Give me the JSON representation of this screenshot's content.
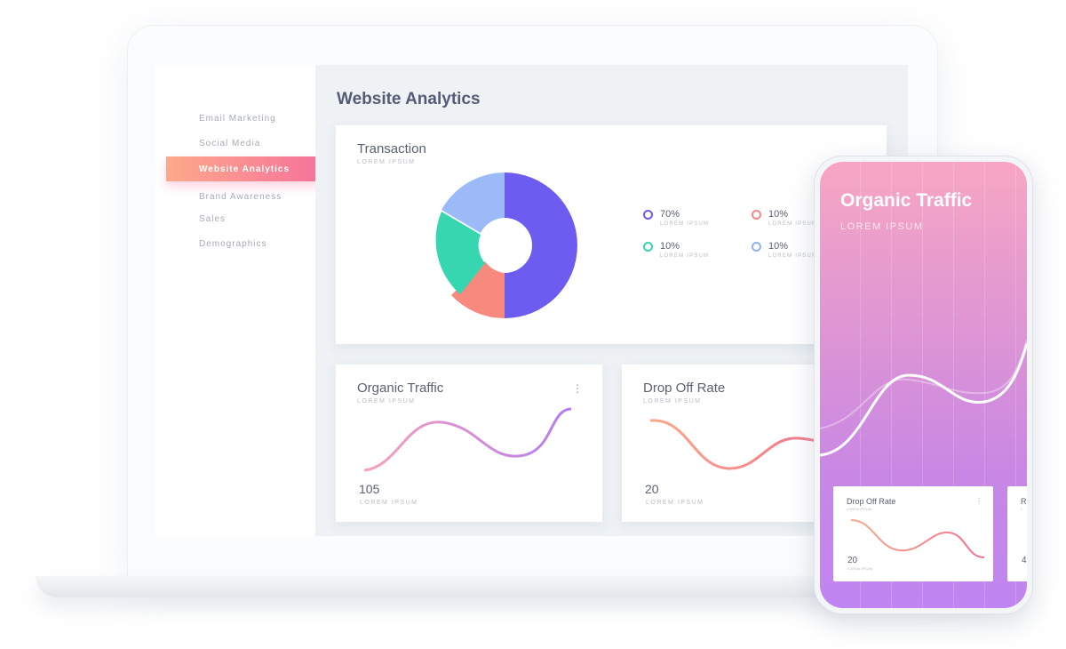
{
  "sidebar": {
    "items": [
      {
        "label": "Email Marketing"
      },
      {
        "label": "Social Media"
      },
      {
        "label": "Website Analytics",
        "active": true
      },
      {
        "label": "Brand Awareness"
      },
      {
        "label": "Sales"
      },
      {
        "label": "Demographics"
      }
    ]
  },
  "main": {
    "title": "Website Analytics",
    "transaction": {
      "title": "Transaction",
      "subtitle": "LOREM IPSUM",
      "legend": [
        {
          "value": "70%",
          "label": "LOREM IPSUM",
          "color": "#6c5cf0"
        },
        {
          "value": "10%",
          "label": "LOREM IPSUM",
          "color": "#f58a8a"
        },
        {
          "value": "10%",
          "label": "LOREM IPSUM",
          "color": "#36d6b0"
        },
        {
          "value": "10%",
          "label": "LOREM IPSUM",
          "color": "#8fb1f5"
        }
      ]
    },
    "organic": {
      "title": "Organic Traffic",
      "subtitle": "LOREM IPSUM",
      "value": "105",
      "value_label": "LOREM IPSUM",
      "menu": "⋮"
    },
    "dropoff": {
      "title": "Drop Off Rate",
      "subtitle": "LOREM IPSUM",
      "value": "20",
      "value_label": "LOREM IPSUM"
    }
  },
  "phone": {
    "title": "Organic Traffic",
    "subtitle": "LOREM IPSUM",
    "card1": {
      "title": "Drop Off Rate",
      "subtitle": "LOREM IPSUM",
      "value": "20",
      "value_label": "LOREM IPSUM",
      "menu": "⋮"
    },
    "card2": {
      "title": "R",
      "subtitle": "L",
      "value": "4"
    }
  }
}
